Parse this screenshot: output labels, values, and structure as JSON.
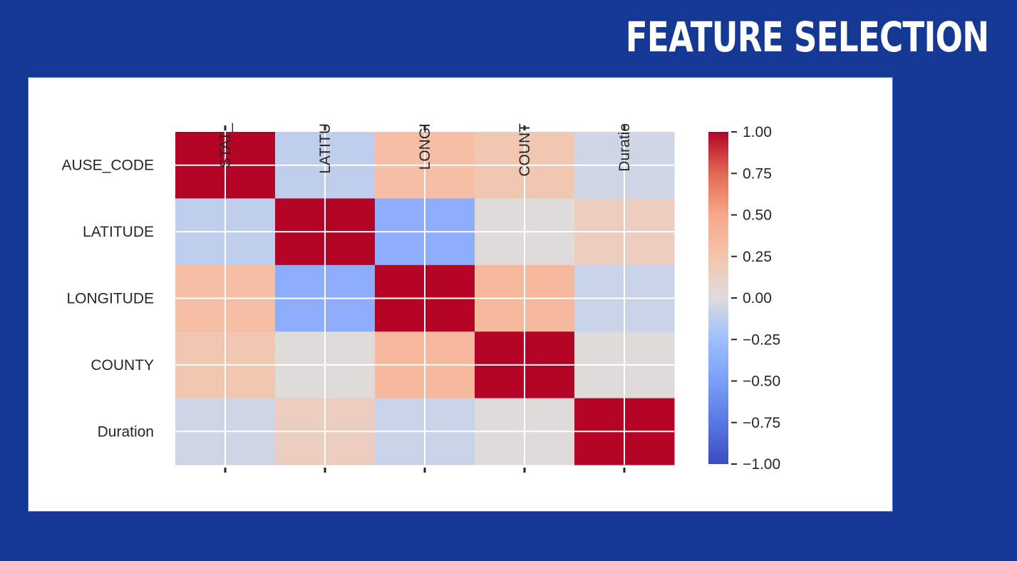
{
  "slide": {
    "title": "FEATURE SELECTION"
  },
  "chart_data": {
    "type": "heatmap",
    "title": "",
    "x_tick_labels": [
      "STAT_",
      "LATITU",
      "LONGI",
      "COUNT",
      "Duratio"
    ],
    "y_tick_labels": [
      "AUSE_CODE",
      "LATITUDE",
      "LONGITUDE",
      "COUNTY",
      "Duration"
    ],
    "values": [
      [
        1.0,
        -0.12,
        0.3,
        0.22,
        -0.06
      ],
      [
        -0.12,
        1.0,
        -0.38,
        0.02,
        0.15
      ],
      [
        0.3,
        -0.38,
        1.0,
        0.35,
        -0.08
      ],
      [
        0.22,
        0.02,
        0.35,
        1.0,
        0.01
      ],
      [
        -0.06,
        0.15,
        -0.08,
        0.01,
        1.0
      ]
    ],
    "colormap": "coolwarm",
    "vmin": -1.0,
    "vmax": 1.0,
    "colorbar_ticks": [
      "1.00",
      "0.75",
      "0.50",
      "0.25",
      "0.00",
      "−0.25",
      "−0.50",
      "−0.75",
      "−1.00"
    ],
    "colorbar_tick_values": [
      1.0,
      0.75,
      0.5,
      0.25,
      0.0,
      -0.25,
      -0.5,
      -0.75,
      -1.0
    ],
    "grid": true,
    "colors": {
      "cold": "#3b4cc0",
      "neutral": "#dddddd",
      "hot": "#b40426"
    }
  }
}
